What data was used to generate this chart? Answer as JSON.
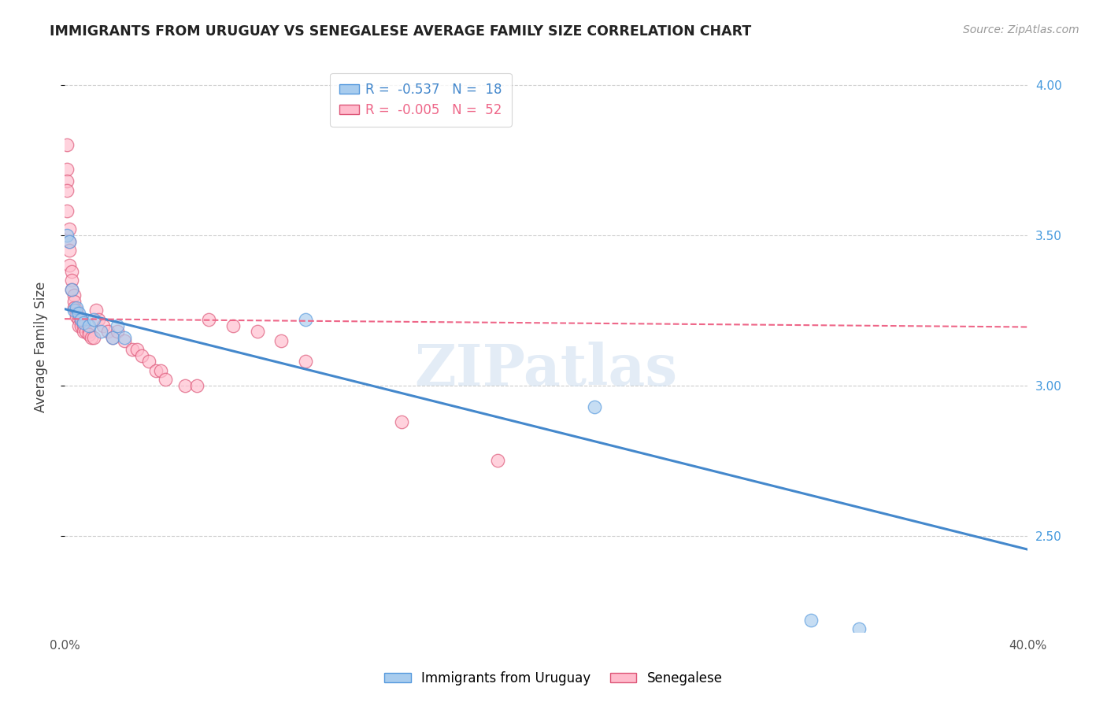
{
  "title": "IMMIGRANTS FROM URUGUAY VS SENEGALESE AVERAGE FAMILY SIZE CORRELATION CHART",
  "source": "Source: ZipAtlas.com",
  "ylabel": "Average Family Size",
  "xlim": [
    0.0,
    0.4
  ],
  "ylim": [
    2.18,
    4.08
  ],
  "yticks": [
    2.5,
    3.0,
    3.5,
    4.0
  ],
  "xticks": [
    0.0,
    0.05,
    0.1,
    0.15,
    0.2,
    0.25,
    0.3,
    0.35,
    0.4
  ],
  "xtick_labels": [
    "0.0%",
    "",
    "",
    "",
    "",
    "",
    "",
    "",
    "40.0%"
  ],
  "legend_R_blue": "-0.537",
  "legend_N_blue": "18",
  "legend_R_pink": "-0.005",
  "legend_N_pink": "52",
  "blue_color": "#A8CCEE",
  "blue_line_color": "#4488CC",
  "blue_edge_color": "#5599DD",
  "pink_color": "#FFBBCC",
  "pink_line_color": "#EE6688",
  "pink_edge_color": "#DD5577",
  "blue_scatter_x": [
    0.001,
    0.002,
    0.003,
    0.004,
    0.005,
    0.006,
    0.007,
    0.008,
    0.01,
    0.012,
    0.015,
    0.02,
    0.022,
    0.025,
    0.1,
    0.22,
    0.31,
    0.33
  ],
  "blue_scatter_y": [
    3.5,
    3.48,
    3.32,
    3.25,
    3.26,
    3.24,
    3.22,
    3.21,
    3.2,
    3.22,
    3.18,
    3.16,
    3.2,
    3.16,
    3.22,
    2.93,
    2.22,
    2.19
  ],
  "pink_scatter_x": [
    0.001,
    0.001,
    0.001,
    0.001,
    0.001,
    0.002,
    0.002,
    0.002,
    0.002,
    0.003,
    0.003,
    0.003,
    0.004,
    0.004,
    0.004,
    0.005,
    0.005,
    0.005,
    0.006,
    0.006,
    0.007,
    0.007,
    0.008,
    0.008,
    0.009,
    0.01,
    0.01,
    0.011,
    0.012,
    0.013,
    0.014,
    0.016,
    0.018,
    0.02,
    0.022,
    0.025,
    0.028,
    0.03,
    0.032,
    0.035,
    0.038,
    0.04,
    0.042,
    0.05,
    0.055,
    0.06,
    0.07,
    0.08,
    0.09,
    0.1,
    0.14,
    0.18
  ],
  "pink_scatter_y": [
    3.8,
    3.72,
    3.68,
    3.65,
    3.58,
    3.52,
    3.48,
    3.45,
    3.4,
    3.38,
    3.35,
    3.32,
    3.3,
    3.28,
    3.26,
    3.25,
    3.24,
    3.23,
    3.22,
    3.2,
    3.22,
    3.2,
    3.2,
    3.18,
    3.18,
    3.18,
    3.17,
    3.16,
    3.16,
    3.25,
    3.22,
    3.2,
    3.18,
    3.16,
    3.18,
    3.15,
    3.12,
    3.12,
    3.1,
    3.08,
    3.05,
    3.05,
    3.02,
    3.0,
    3.0,
    3.22,
    3.2,
    3.18,
    3.15,
    3.08,
    2.88,
    2.75
  ],
  "blue_line_x": [
    0.0,
    0.4
  ],
  "blue_line_y": [
    3.255,
    2.455
  ],
  "pink_line_x": [
    0.0,
    0.4
  ],
  "pink_line_y": [
    3.222,
    3.195
  ],
  "watermark_text": "ZIPatlas",
  "figsize": [
    14.06,
    8.92
  ],
  "dpi": 100
}
